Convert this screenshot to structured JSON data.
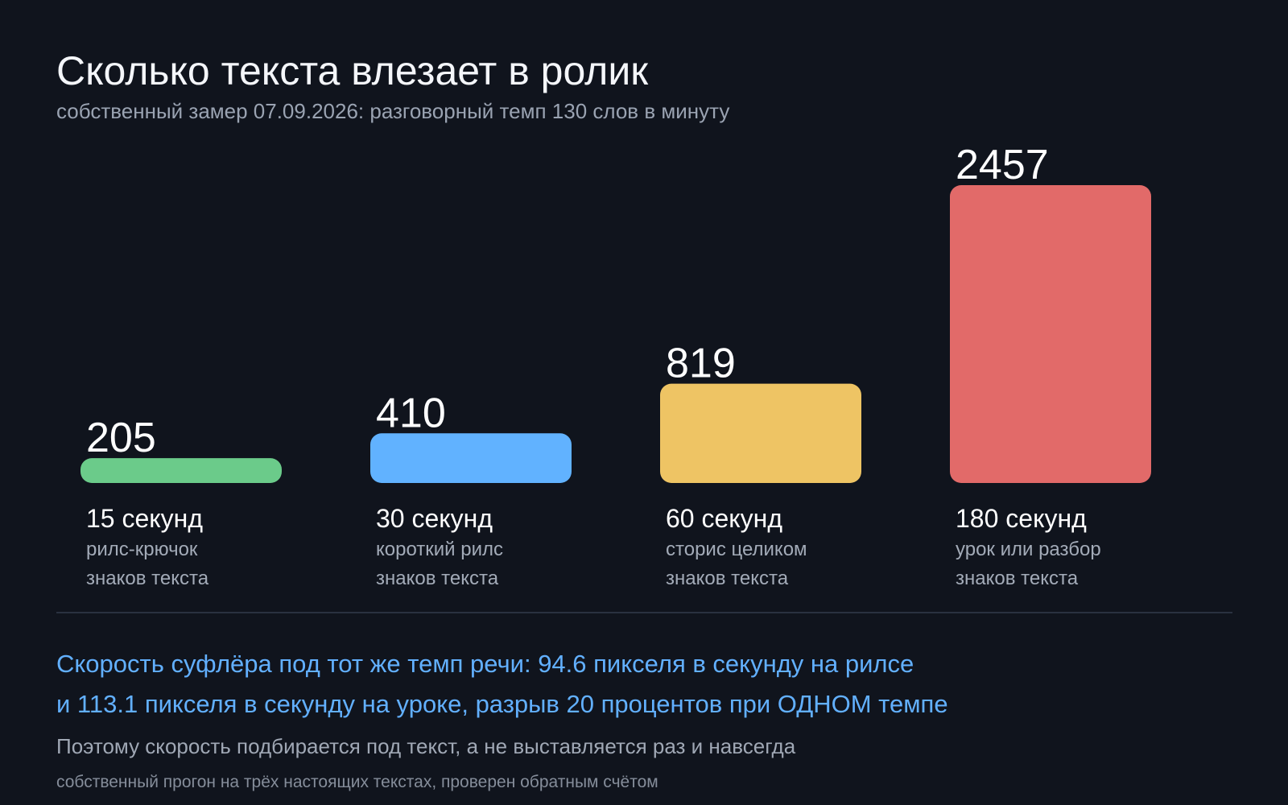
{
  "header": {
    "title": "Сколько текста влезает в ролик",
    "subtitle": "собственный замер 07.09.2026: разговорный темп 130 слов в минуту"
  },
  "chart_data": {
    "type": "bar",
    "categories": [
      "15 секунд",
      "30 секунд",
      "60 секунд",
      "180 секунд"
    ],
    "descriptions": [
      "рилс-крючок",
      "короткий рилс",
      "сторис целиком",
      "урок или разбор"
    ],
    "unit_label": "знаков текста",
    "values": [
      205,
      410,
      819,
      2457
    ],
    "colors": [
      "#6bcb8a",
      "#61b2ff",
      "#eec464",
      "#e26a69"
    ],
    "grid": false,
    "legend": "none"
  },
  "notes": {
    "highlight_lines": [
      "Скорость суфлёра под тот же темп речи: 94.6 пикселя в секунду на рилсе",
      "и 113.1 пикселя в секунду на уроке, разрыв 20 процентов при ОДНОМ темпе"
    ],
    "explanation": "Поэтому скорость подбирается под текст, а не выставляется раз и навсегда",
    "footnote": "собственный прогон на трёх настоящих текстах, проверен обратным счётом"
  }
}
